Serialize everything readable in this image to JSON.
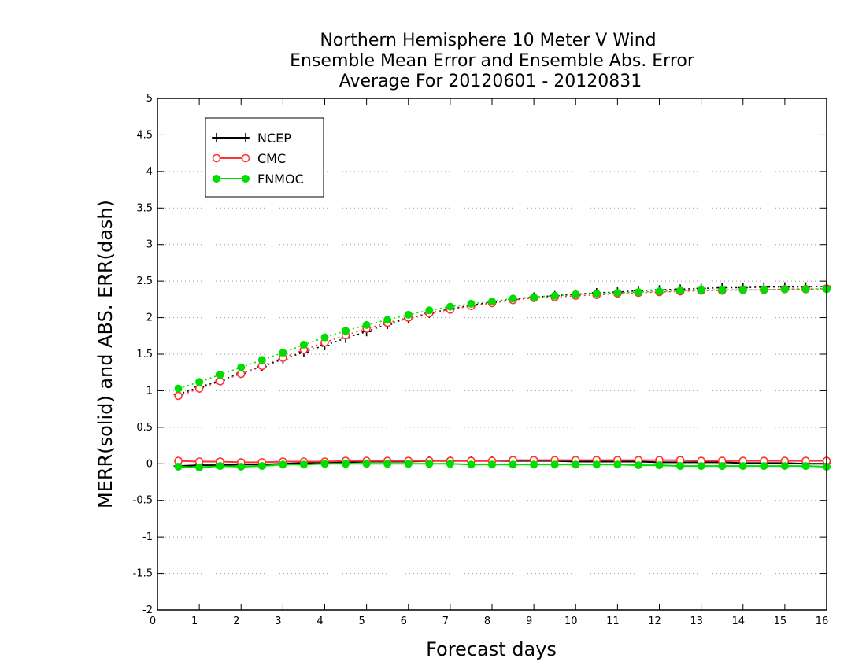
{
  "chart_data": {
    "type": "line",
    "title": [
      "Northern Hemisphere 10 Meter V Wind",
      "Ensemble Mean Error and Ensemble Abs. Error",
      "Average For 20120601 - 20120831"
    ],
    "xlabel": "Forecast days",
    "ylabel": "MERR(solid) and ABS. ERR(dash)",
    "xlim": [
      0,
      16
    ],
    "ylim": [
      -2,
      5
    ],
    "xticks": [
      "0",
      "1",
      "2",
      "3",
      "4",
      "5",
      "6",
      "7",
      "8",
      "9",
      "10",
      "11",
      "12",
      "13",
      "14",
      "15",
      "16"
    ],
    "yticks": [
      "5",
      "4.5",
      "4",
      "3.5",
      "3",
      "2.5",
      "2",
      "1.5",
      "1",
      "0.5",
      "0",
      "-0.5",
      "-1",
      "-1.5",
      "-2"
    ],
    "grid": "horizontal dotted",
    "legend_position": "top-left",
    "x": [
      0.5,
      1,
      1.5,
      2,
      2.5,
      3,
      3.5,
      4,
      4.5,
      5,
      5.5,
      6,
      6.5,
      7,
      7.5,
      8,
      8.5,
      9,
      9.5,
      10,
      10.5,
      11,
      11.5,
      12,
      12.5,
      13,
      13.5,
      14,
      14.5,
      15,
      15.5,
      16
    ],
    "series": [
      {
        "name": "NCEP",
        "color": "#000000",
        "marker": "plus",
        "abs_error": [
          0.95,
          1.05,
          1.14,
          1.24,
          1.33,
          1.43,
          1.53,
          1.62,
          1.72,
          1.81,
          1.91,
          1.99,
          2.06,
          2.12,
          2.17,
          2.21,
          2.25,
          2.28,
          2.3,
          2.32,
          2.34,
          2.35,
          2.37,
          2.38,
          2.39,
          2.4,
          2.41,
          2.41,
          2.42,
          2.42,
          2.42,
          2.43
        ],
        "mean_error": [
          -0.03,
          -0.02,
          -0.02,
          -0.01,
          -0.01,
          0.0,
          0.01,
          0.02,
          0.02,
          0.03,
          0.03,
          0.03,
          0.04,
          0.04,
          0.04,
          0.04,
          0.04,
          0.04,
          0.04,
          0.03,
          0.03,
          0.03,
          0.03,
          0.02,
          0.02,
          0.02,
          0.02,
          0.01,
          0.01,
          0.01,
          0.0,
          0.0
        ]
      },
      {
        "name": "CMC",
        "color": "#ff3333",
        "marker": "open-circle",
        "abs_error": [
          0.93,
          1.03,
          1.13,
          1.23,
          1.34,
          1.45,
          1.56,
          1.66,
          1.76,
          1.85,
          1.93,
          2.0,
          2.06,
          2.11,
          2.16,
          2.2,
          2.24,
          2.27,
          2.28,
          2.3,
          2.31,
          2.33,
          2.34,
          2.35,
          2.36,
          2.37,
          2.37,
          2.38,
          2.38,
          2.39,
          2.39,
          2.4
        ],
        "mean_error": [
          0.04,
          0.03,
          0.03,
          0.02,
          0.02,
          0.03,
          0.03,
          0.03,
          0.04,
          0.04,
          0.04,
          0.04,
          0.04,
          0.04,
          0.04,
          0.04,
          0.05,
          0.05,
          0.05,
          0.05,
          0.05,
          0.05,
          0.05,
          0.05,
          0.05,
          0.04,
          0.04,
          0.04,
          0.04,
          0.04,
          0.04,
          0.04
        ]
      },
      {
        "name": "FNMOC",
        "color": "#00dd00",
        "marker": "filled-circle",
        "abs_error": [
          1.03,
          1.12,
          1.22,
          1.32,
          1.42,
          1.52,
          1.63,
          1.73,
          1.82,
          1.9,
          1.97,
          2.04,
          2.1,
          2.15,
          2.19,
          2.22,
          2.26,
          2.28,
          2.3,
          2.32,
          2.33,
          2.34,
          2.35,
          2.36,
          2.37,
          2.38,
          2.38,
          2.38,
          2.38,
          2.39,
          2.39,
          2.39
        ],
        "mean_error": [
          -0.04,
          -0.05,
          -0.03,
          -0.04,
          -0.03,
          -0.01,
          -0.01,
          0.0,
          0.0,
          0.0,
          0.0,
          0.0,
          0.0,
          0.0,
          -0.01,
          -0.01,
          -0.01,
          -0.01,
          -0.01,
          -0.01,
          -0.01,
          -0.01,
          -0.02,
          -0.02,
          -0.03,
          -0.03,
          -0.03,
          -0.03,
          -0.03,
          -0.03,
          -0.03,
          -0.04
        ]
      }
    ]
  }
}
